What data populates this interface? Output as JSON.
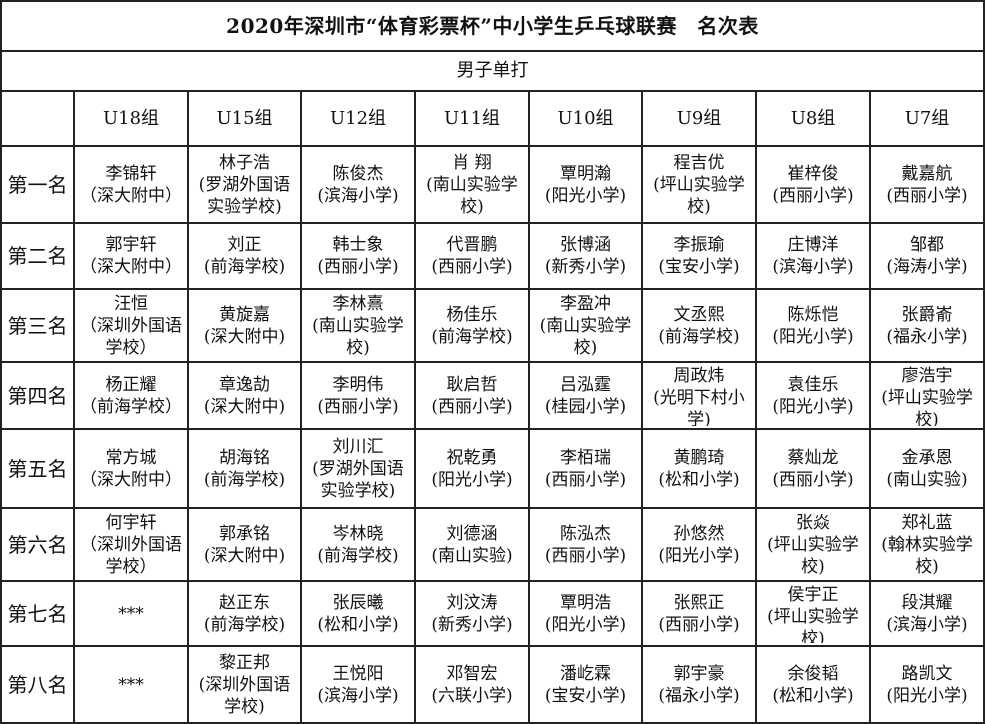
{
  "title": "2020年深圳市“体育彩票杯”中小学生乒乓球联赛　名次表",
  "subtitle": "男子单打",
  "groups": [
    "U18组",
    "U15组",
    "U12组",
    "U11组",
    "U10组",
    "U9组",
    "U8组",
    "U7组"
  ],
  "rows": [
    {
      "rank": "第一名",
      "cells": [
        {
          "name": "李锦轩",
          "school": "（深大附中）"
        },
        {
          "name": "林子浩",
          "school": "(罗湖外国语实验学校)"
        },
        {
          "name": "陈俊杰",
          "school": "(滨海小学)"
        },
        {
          "name": "肖 翔",
          "school": "(南山实验学校)"
        },
        {
          "name": "覃明瀚",
          "school": "(阳光小学)"
        },
        {
          "name": "程吉优",
          "school": "(坪山实验学校)"
        },
        {
          "name": "崔梓俊",
          "school": "(西丽小学)"
        },
        {
          "name": "戴嘉航",
          "school": "(西丽小学)"
        }
      ]
    },
    {
      "rank": "第二名",
      "cells": [
        {
          "name": "郭宇轩",
          "school": "（深大附中）"
        },
        {
          "name": "刘正",
          "school": "(前海学校)"
        },
        {
          "name": "韩士象",
          "school": "(西丽小学)"
        },
        {
          "name": "代晋鹏",
          "school": "(西丽小学)"
        },
        {
          "name": "张博涵",
          "school": "(新秀小学)"
        },
        {
          "name": "李振瑜",
          "school": "(宝安小学)"
        },
        {
          "name": "庄博洋",
          "school": "(滨海小学)"
        },
        {
          "name": "邹都",
          "school": "(海涛小学)"
        }
      ]
    },
    {
      "rank": "第三名",
      "cells": [
        {
          "name": "汪恒",
          "school": "（深圳外国语学校）"
        },
        {
          "name": "黄旋嘉",
          "school": "(深大附中)"
        },
        {
          "name": "李林熹",
          "school": "(南山实验学校)"
        },
        {
          "name": "杨佳乐",
          "school": "(前海学校)"
        },
        {
          "name": "李盈冲",
          "school": "(南山实验学校)"
        },
        {
          "name": "文丞熙",
          "school": "(前海学校)"
        },
        {
          "name": "陈烁恺",
          "school": "(阳光小学)"
        },
        {
          "name": "张爵嵛",
          "school": "(福永小学)"
        }
      ]
    },
    {
      "rank": "第四名",
      "cells": [
        {
          "name": "杨正耀",
          "school": "（前海学校）"
        },
        {
          "name": "章逸劼",
          "school": "(深大附中)"
        },
        {
          "name": "李明伟",
          "school": "(西丽小学)"
        },
        {
          "name": "耿启哲",
          "school": "(西丽小学)"
        },
        {
          "name": "吕泓霆",
          "school": "(桂园小学)"
        },
        {
          "name": "周政炜",
          "school": "(光明下村小学)"
        },
        {
          "name": "袁佳乐",
          "school": "(阳光小学)"
        },
        {
          "name": "廖浩宇",
          "school": "(坪山实验学校)"
        }
      ]
    },
    {
      "rank": "第五名",
      "cells": [
        {
          "name": "常方城",
          "school": "（深大附中）"
        },
        {
          "name": "胡海铭",
          "school": "(前海学校)"
        },
        {
          "name": "刘川汇",
          "school": "(罗湖外国语实验学校)"
        },
        {
          "name": "祝乾勇",
          "school": "(阳光小学)"
        },
        {
          "name": "李栢瑞",
          "school": "(西丽小学)"
        },
        {
          "name": "黄鹏琦",
          "school": "(松和小学)"
        },
        {
          "name": "蔡灿龙",
          "school": "(西丽小学)"
        },
        {
          "name": "金承恩",
          "school": "(南山实验)"
        }
      ]
    },
    {
      "rank": "第六名",
      "cells": [
        {
          "name": "何宇轩",
          "school": "（深圳外国语学校）"
        },
        {
          "name": "郭承铭",
          "school": "(深大附中)"
        },
        {
          "name": "岑林晓",
          "school": "(前海学校)"
        },
        {
          "name": "刘德涵",
          "school": "(南山实验)"
        },
        {
          "name": "陈泓杰",
          "school": "(西丽小学)"
        },
        {
          "name": "孙悠然",
          "school": "(阳光小学)"
        },
        {
          "name": "张焱",
          "school": "(坪山实验学校)"
        },
        {
          "name": "郑礼蓝",
          "school": "(翰林实验学校)"
        }
      ]
    },
    {
      "rank": "第七名",
      "cells": [
        {
          "name": "***",
          "school": ""
        },
        {
          "name": "赵正东",
          "school": "(前海学校)"
        },
        {
          "name": "张辰曦",
          "school": "(松和小学)"
        },
        {
          "name": "刘汶涛",
          "school": "(新秀小学)"
        },
        {
          "name": "覃明浩",
          "school": "(阳光小学)"
        },
        {
          "name": "张熙正",
          "school": "(西丽小学)"
        },
        {
          "name": "侯宇正",
          "school": "(坪山实验学校)"
        },
        {
          "name": "段淇耀",
          "school": "(滨海小学)"
        }
      ]
    },
    {
      "rank": "第八名",
      "cells": [
        {
          "name": "***",
          "school": ""
        },
        {
          "name": "黎正邦",
          "school": "(深圳外国语学校)"
        },
        {
          "name": "王悦阳",
          "school": "(滨海小学)"
        },
        {
          "name": "邓智宏",
          "school": "(六联小学)"
        },
        {
          "name": "潘屹霖",
          "school": "(宝安小学)"
        },
        {
          "name": "郭宇豪",
          "school": "(福永小学)"
        },
        {
          "name": "余俊韬",
          "school": "(松和小学)"
        },
        {
          "name": "路凯文",
          "school": "(阳光小学)"
        }
      ]
    }
  ]
}
